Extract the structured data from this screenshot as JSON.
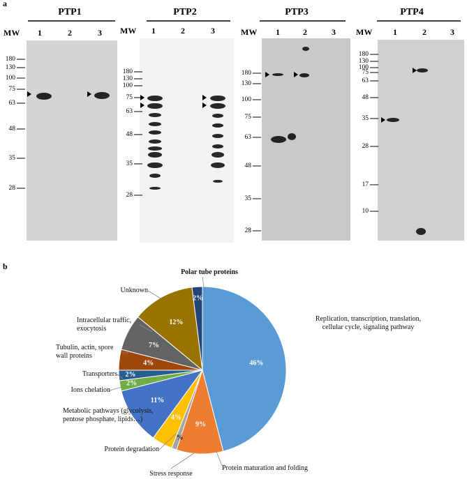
{
  "panel_a": {
    "label": "a",
    "blots": [
      {
        "title": "PTP1",
        "mw_heading": "MW",
        "lanes": [
          "1",
          "2",
          "3"
        ],
        "mw": [
          "180",
          "130",
          "100",
          "75",
          "63",
          "48",
          "35",
          "28"
        ]
      },
      {
        "title": "PTP2",
        "mw_heading": "MW",
        "lanes": [
          "1",
          "2",
          "3"
        ],
        "mw": [
          "180",
          "130",
          "100",
          "75",
          "63",
          "48",
          "35",
          "28"
        ]
      },
      {
        "title": "PTP3",
        "mw_heading": "MW",
        "lanes": [
          "1",
          "2",
          "3"
        ],
        "mw": [
          "180",
          "130",
          "100",
          "75",
          "63",
          "48",
          "35",
          "28"
        ]
      },
      {
        "title": "PTP4",
        "mw_heading": "MW",
        "lanes": [
          "1",
          "2",
          "3"
        ],
        "mw": [
          "180",
          "130",
          "100",
          "75",
          "63",
          "48",
          "35",
          "28",
          "17",
          "10"
        ]
      }
    ]
  },
  "panel_b": {
    "label": "b"
  },
  "chart_data": {
    "type": "pie",
    "categories": [
      "Replication, transcription, translation, cellular cycle, signaling pathway",
      "Protein maturation and folding",
      "Stress response",
      "Protein degradation",
      "Metabolic pathways (glycolysis, pentose phosphate, lipids…)",
      "Ions chelation",
      "Transporters",
      "Tubulin, actin, spore wall proteins",
      "Intracellular traffic, exocytosis",
      "Unknown",
      "Polar tube proteins"
    ],
    "values": [
      46,
      9,
      1,
      4,
      11,
      2,
      2,
      4,
      7,
      12,
      2
    ],
    "value_labels": [
      "46%",
      "9%",
      "1%",
      "4%",
      "11%",
      "2%",
      "2%",
      "4%",
      "7%",
      "12%",
      "2%"
    ],
    "colors": [
      "#5b9bd5",
      "#ed7d31",
      "#a5a5a5",
      "#ffc000",
      "#4472c4",
      "#70ad47",
      "#255e91",
      "#9e480e",
      "#636363",
      "#997300",
      "#264478"
    ]
  }
}
